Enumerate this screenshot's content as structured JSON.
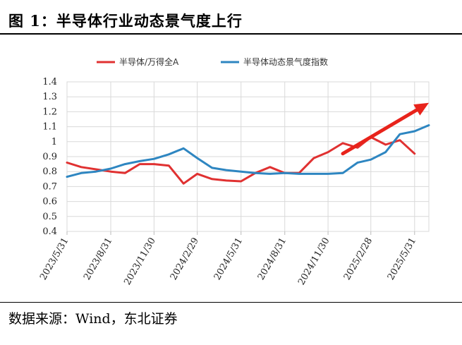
{
  "figure": {
    "title": "图  1：半导体行业动态景气度上行",
    "source": "数据来源：Wind，东北证券"
  },
  "chart_data": {
    "type": "line",
    "x_ticks": [
      "2023/5/31",
      "2023/8/31",
      "2023/11/30",
      "2024/2/29",
      "2024/5/31",
      "2024/8/31",
      "2024/11/30",
      "2025/2/28",
      "2025/5/31"
    ],
    "ylim": [
      0.4,
      1.4
    ],
    "y_ticks": [
      "0.4",
      "0.5",
      "0.6",
      "0.7",
      "0.8",
      "0.9",
      "1",
      "1.1",
      "1.2",
      "1.3",
      "1.4"
    ],
    "grid": true,
    "legend_position": "top",
    "series": [
      {
        "name": "半导体/万得全A",
        "color": "#e03131",
        "points": [
          [
            "2023/5/31",
            0.86
          ],
          [
            "2023/6/30",
            0.83
          ],
          [
            "2023/7/31",
            0.815
          ],
          [
            "2023/8/31",
            0.8
          ],
          [
            "2023/9/30",
            0.79
          ],
          [
            "2023/10/31",
            0.85
          ],
          [
            "2023/11/30",
            0.85
          ],
          [
            "2023/12/31",
            0.84
          ],
          [
            "2024/1/31",
            0.72
          ],
          [
            "2024/2/29",
            0.785
          ],
          [
            "2024/3/31",
            0.75
          ],
          [
            "2024/4/30",
            0.74
          ],
          [
            "2024/5/31",
            0.735
          ],
          [
            "2024/6/30",
            0.79
          ],
          [
            "2024/7/31",
            0.83
          ],
          [
            "2024/8/31",
            0.79
          ],
          [
            "2024/9/30",
            0.79
          ],
          [
            "2024/10/31",
            0.89
          ],
          [
            "2024/11/30",
            0.93
          ],
          [
            "2024/12/31",
            0.99
          ],
          [
            "2025/1/31",
            0.96
          ],
          [
            "2025/2/28",
            1.03
          ],
          [
            "2025/3/31",
            0.98
          ],
          [
            "2025/4/30",
            1.01
          ],
          [
            "2025/5/31",
            0.92
          ]
        ]
      },
      {
        "name": "半导体动态景气度指数",
        "color": "#2e86c1",
        "points": [
          [
            "2023/5/31",
            0.765
          ],
          [
            "2023/6/30",
            0.79
          ],
          [
            "2023/7/31",
            0.8
          ],
          [
            "2023/8/31",
            0.82
          ],
          [
            "2023/9/30",
            0.85
          ],
          [
            "2023/10/31",
            0.87
          ],
          [
            "2023/11/30",
            0.885
          ],
          [
            "2023/12/31",
            0.915
          ],
          [
            "2024/1/31",
            0.955
          ],
          [
            "2024/2/29",
            0.89
          ],
          [
            "2024/3/31",
            0.825
          ],
          [
            "2024/4/30",
            0.81
          ],
          [
            "2024/5/31",
            0.8
          ],
          [
            "2024/6/30",
            0.79
          ],
          [
            "2024/7/31",
            0.785
          ],
          [
            "2024/8/31",
            0.79
          ],
          [
            "2024/9/30",
            0.785
          ],
          [
            "2024/10/31",
            0.785
          ],
          [
            "2024/11/30",
            0.785
          ],
          [
            "2024/12/31",
            0.79
          ],
          [
            "2025/1/31",
            0.86
          ],
          [
            "2025/2/28",
            0.88
          ],
          [
            "2025/3/31",
            0.93
          ],
          [
            "2025/4/30",
            1.05
          ],
          [
            "2025/5/31",
            1.07
          ],
          [
            "2025/6/30",
            1.11
          ]
        ]
      }
    ],
    "annotation": {
      "type": "arrow",
      "color": "#e8231b",
      "from": [
        "2024/12/31",
        0.92
      ],
      "to": [
        "2025/6/30",
        1.26
      ]
    }
  }
}
